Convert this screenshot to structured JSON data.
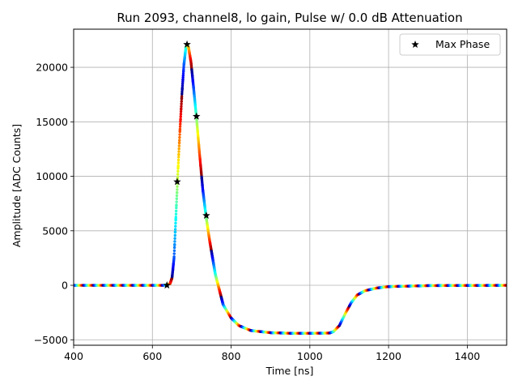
{
  "chart_data": {
    "type": "scatter",
    "title": "Run 2093, channel8, lo gain, Pulse w/ 0.0 dB Attenuation",
    "xlabel": "Time [ns]",
    "ylabel": "Amplitude [ADC Counts]",
    "xlim": [
      400,
      1500
    ],
    "ylim": [
      -5500,
      23500
    ],
    "x_ticks": [
      400,
      600,
      800,
      1000,
      1200,
      1400
    ],
    "x_tick_labels": [
      "400",
      "600",
      "800",
      "1000",
      "1200",
      "1400"
    ],
    "y_ticks": [
      -5000,
      0,
      5000,
      10000,
      15000,
      20000
    ],
    "y_tick_labels": [
      "−5000",
      "0",
      "5000",
      "10000",
      "15000",
      "20000"
    ],
    "grid": true,
    "legend": {
      "position": "top-right",
      "entries": [
        "Max Phase"
      ]
    },
    "colormap": "jet",
    "series": [
      {
        "name": "pulse",
        "style": "dots-colored-by-phase",
        "points": [
          [
            400,
            0
          ],
          [
            630,
            0
          ],
          [
            645,
            150
          ],
          [
            650,
            700
          ],
          [
            655,
            2500
          ],
          [
            660,
            6500
          ],
          [
            665,
            10500
          ],
          [
            670,
            14200
          ],
          [
            675,
            17500
          ],
          [
            680,
            20200
          ],
          [
            685,
            21800
          ],
          [
            688,
            22150
          ],
          [
            692,
            21800
          ],
          [
            698,
            20500
          ],
          [
            705,
            18000
          ],
          [
            712,
            15400
          ],
          [
            720,
            12000
          ],
          [
            728,
            8800
          ],
          [
            736,
            6400
          ],
          [
            745,
            4200
          ],
          [
            760,
            1000
          ],
          [
            780,
            -1800
          ],
          [
            800,
            -3000
          ],
          [
            820,
            -3700
          ],
          [
            850,
            -4150
          ],
          [
            900,
            -4350
          ],
          [
            950,
            -4400
          ],
          [
            1000,
            -4400
          ],
          [
            1050,
            -4380
          ],
          [
            1060,
            -4250
          ],
          [
            1075,
            -3700
          ],
          [
            1090,
            -2600
          ],
          [
            1105,
            -1600
          ],
          [
            1120,
            -900
          ],
          [
            1140,
            -500
          ],
          [
            1170,
            -250
          ],
          [
            1200,
            -120
          ],
          [
            1300,
            -30
          ],
          [
            1500,
            0
          ]
        ]
      },
      {
        "name": "Max Phase",
        "style": "star",
        "points": [
          [
            637,
            0
          ],
          [
            663,
            9500
          ],
          [
            688,
            22100
          ],
          [
            712,
            15500
          ],
          [
            737,
            6400
          ]
        ]
      }
    ]
  }
}
